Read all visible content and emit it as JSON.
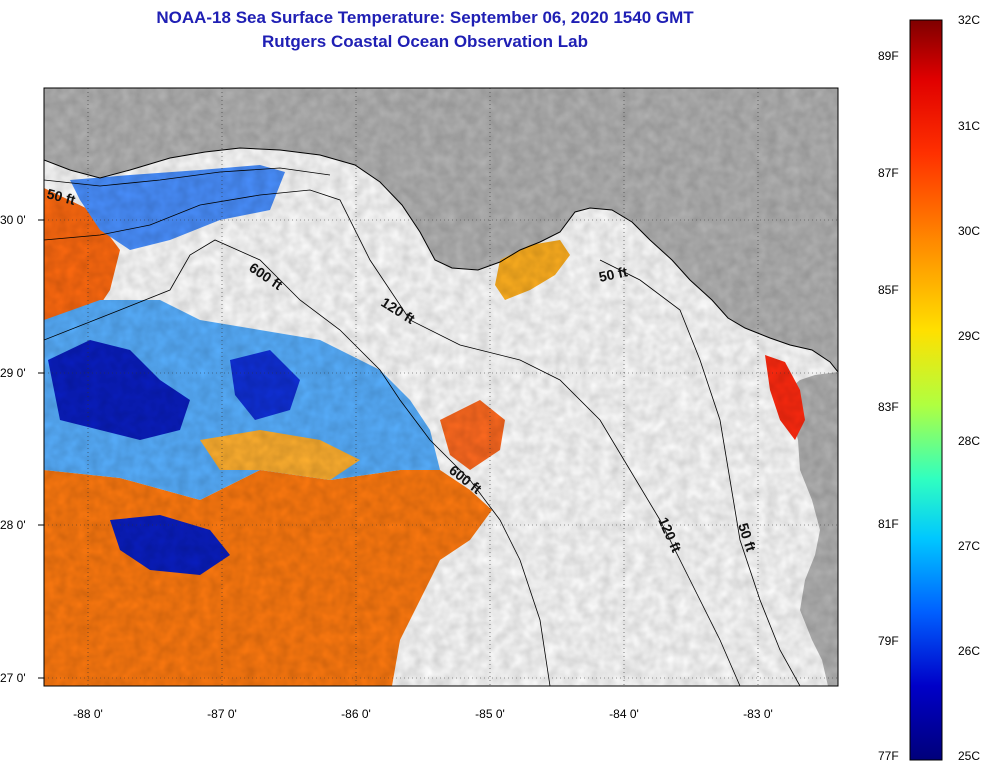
{
  "header": {
    "title": "NOAA-18 Sea Surface Temperature:  September 06, 2020 1540 GMT",
    "subtitle": "Rutgers Coastal Ocean Observation Lab"
  },
  "map": {
    "lat_labels": [
      "30 0'",
      "29 0'",
      "28 0'",
      "27 0'"
    ],
    "lon_labels": [
      "-88 0'",
      "-87 0'",
      "-86 0'",
      "-85 0'",
      "-84 0'",
      "-83 0'"
    ],
    "contours": [
      "50 ft",
      "600 ft",
      "120 ft",
      "50 ft",
      "600 ft",
      "120 ft",
      "50 ft"
    ]
  },
  "colorbar": {
    "celsius_labels": [
      "32C",
      "31C",
      "30C",
      "29C",
      "28C",
      "27C",
      "26C",
      "25C"
    ],
    "fahrenheit_labels": [
      "89F",
      "87F",
      "85F",
      "83F",
      "81F",
      "79F",
      "77F"
    ],
    "stops": [
      "#7f0000",
      "#e00000",
      "#ff3000",
      "#ff8a00",
      "#ffe000",
      "#b0ff40",
      "#30ffc0",
      "#00c8ff",
      "#0060ff",
      "#0000c8",
      "#00007a"
    ]
  },
  "colors": {
    "title": "#1f1fb4",
    "land": "#b4b4b4",
    "cloud": "#ffffff"
  }
}
